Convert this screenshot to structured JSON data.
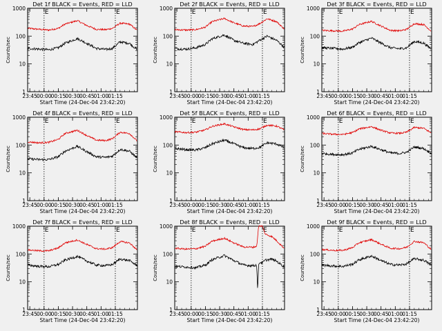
{
  "page": {
    "background": "#f0f0f0"
  },
  "colors": {
    "events": "#000000",
    "lld": "#e00000",
    "axis": "#000000"
  },
  "chart_data": [
    {
      "type": "line",
      "title": "Det 1f BLACK = Events, RED = LLD",
      "ylabel": "Counts/sec",
      "xlabel": "Start Time (24-Dec-04 23:42:20)",
      "y_scale": "log",
      "ylim": [
        1,
        1000
      ],
      "y_ticks": [
        "1",
        "10",
        "100",
        "1000"
      ],
      "x_ticks": [
        "23:45",
        "00:00",
        "00:15",
        "00:30",
        "00:45",
        "01:00",
        "01:15"
      ],
      "xlim_minutes": [
        -17.3,
        98.3
      ],
      "markers": [
        {
          "label": "E",
          "x_minutes": 0
        },
        {
          "label": "E",
          "x_minutes": 75
        }
      ],
      "series": [
        {
          "color": "red",
          "x_minutes": [
            -17,
            -5,
            5,
            15,
            22,
            35,
            45,
            55,
            65,
            72,
            80,
            90,
            98
          ],
          "values": [
            190,
            175,
            165,
            190,
            270,
            360,
            240,
            175,
            170,
            190,
            290,
            270,
            160
          ]
        },
        {
          "color": "black",
          "x_minutes": [
            -17,
            -5,
            5,
            15,
            22,
            35,
            45,
            55,
            65,
            72,
            80,
            90,
            98
          ],
          "values": [
            36,
            34,
            32,
            38,
            55,
            82,
            55,
            36,
            33,
            36,
            62,
            55,
            32
          ]
        }
      ]
    },
    {
      "type": "line",
      "title": "Det 2f BLACK = Events, RED = LLD",
      "ylabel": "Counts/sec",
      "xlabel": "Start Time (24-Dec-04 23:42:20)",
      "y_scale": "log",
      "ylim": [
        1,
        1000
      ],
      "y_ticks": [
        "1",
        "10",
        "100",
        "1000"
      ],
      "x_ticks": [
        "23:45",
        "00:00",
        "00:15",
        "00:30",
        "00:45",
        "01:00",
        "01:15"
      ],
      "xlim_minutes": [
        -17.3,
        98.3
      ],
      "markers": [
        {
          "label": "E",
          "x_minutes": 0
        },
        {
          "label": "E",
          "x_minutes": 75
        }
      ],
      "series": [
        {
          "color": "red",
          "x_minutes": [
            -17,
            -5,
            5,
            15,
            22,
            35,
            45,
            55,
            65,
            72,
            80,
            90,
            98
          ],
          "values": [
            170,
            165,
            170,
            210,
            330,
            430,
            300,
            230,
            220,
            280,
            420,
            330,
            180
          ]
        },
        {
          "color": "black",
          "x_minutes": [
            -17,
            -5,
            5,
            15,
            22,
            35,
            45,
            55,
            65,
            72,
            80,
            90,
            98
          ],
          "values": [
            35,
            34,
            38,
            50,
            80,
            110,
            70,
            55,
            50,
            70,
            100,
            70,
            40
          ]
        }
      ]
    },
    {
      "type": "line",
      "title": "Det 3f BLACK = Events, RED = LLD",
      "ylabel": "Counts/sec",
      "xlabel": "Start Time (24-Dec-04 23:42:20)",
      "y_scale": "log",
      "ylim": [
        1,
        1000
      ],
      "y_ticks": [
        "1",
        "10",
        "100",
        "1000"
      ],
      "x_ticks": [
        "23:45",
        "00:00",
        "00:15",
        "00:30",
        "00:45",
        "01:00",
        "01:15"
      ],
      "xlim_minutes": [
        -17.3,
        98.3
      ],
      "markers": [
        {
          "label": "E",
          "x_minutes": 0
        },
        {
          "label": "E",
          "x_minutes": 75
        }
      ],
      "series": [
        {
          "color": "red",
          "x_minutes": [
            -17,
            -5,
            5,
            15,
            22,
            35,
            45,
            55,
            65,
            72,
            80,
            90,
            98
          ],
          "values": [
            160,
            155,
            150,
            180,
            260,
            340,
            230,
            160,
            155,
            175,
            280,
            260,
            150
          ]
        },
        {
          "color": "black",
          "x_minutes": [
            -17,
            -5,
            5,
            15,
            22,
            35,
            45,
            55,
            65,
            72,
            80,
            90,
            98
          ],
          "values": [
            38,
            36,
            34,
            40,
            58,
            85,
            56,
            38,
            35,
            38,
            64,
            56,
            34
          ]
        }
      ]
    },
    {
      "type": "line",
      "title": "Det 4f BLACK = Events, RED = LLD",
      "ylabel": "Counts/sec",
      "xlabel": "Start Time (24-Dec-04 23:42:20)",
      "y_scale": "log",
      "ylim": [
        1,
        1000
      ],
      "y_ticks": [
        "1",
        "10",
        "100",
        "1000"
      ],
      "x_ticks": [
        "23:45",
        "00:00",
        "00:15",
        "00:30",
        "00:45",
        "01:00",
        "01:15"
      ],
      "xlim_minutes": [
        -17.3,
        98.3
      ],
      "markers": [
        {
          "label": "E",
          "x_minutes": 0
        },
        {
          "label": "E",
          "x_minutes": 75
        }
      ],
      "series": [
        {
          "color": "red",
          "x_minutes": [
            -17,
            -5,
            5,
            15,
            22,
            35,
            45,
            55,
            65,
            72,
            80,
            90,
            98
          ],
          "values": [
            130,
            120,
            125,
            160,
            260,
            340,
            220,
            150,
            145,
            170,
            290,
            260,
            140
          ]
        },
        {
          "color": "black",
          "x_minutes": [
            -17,
            -5,
            5,
            15,
            22,
            35,
            45,
            55,
            65,
            72,
            80,
            90,
            98
          ],
          "values": [
            32,
            30,
            30,
            38,
            60,
            90,
            58,
            38,
            36,
            40,
            70,
            60,
            34
          ]
        }
      ]
    },
    {
      "type": "line",
      "title": "Det 5f BLACK = Events, RED = LLD",
      "ylabel": "Counts/sec",
      "xlabel": "Start Time (24-Dec-04 23:42:20)",
      "y_scale": "log",
      "ylim": [
        1,
        1000
      ],
      "y_ticks": [
        "1",
        "10",
        "100",
        "1000"
      ],
      "x_ticks": [
        "23:45",
        "00:00",
        "00:15",
        "00:30",
        "00:45",
        "01:00",
        "01:15"
      ],
      "xlim_minutes": [
        -17.3,
        98.3
      ],
      "markers": [
        {
          "label": "E",
          "x_minutes": 0
        },
        {
          "label": "E",
          "x_minutes": 75
        }
      ],
      "series": [
        {
          "color": "red",
          "x_minutes": [
            -17,
            -5,
            5,
            15,
            22,
            35,
            45,
            55,
            65,
            72,
            80,
            90,
            98
          ],
          "values": [
            300,
            280,
            290,
            350,
            470,
            580,
            450,
            360,
            350,
            380,
            520,
            480,
            350
          ]
        },
        {
          "color": "black",
          "x_minutes": [
            -17,
            -5,
            5,
            15,
            22,
            35,
            45,
            55,
            65,
            72,
            80,
            90,
            98
          ],
          "values": [
            75,
            68,
            66,
            80,
            110,
            150,
            110,
            80,
            75,
            82,
            120,
            110,
            80
          ]
        }
      ]
    },
    {
      "type": "line",
      "title": "Det 6f BLACK = Events, RED = LLD",
      "ylabel": "Counts/sec",
      "xlabel": "Start Time (24-Dec-04 23:42:20)",
      "y_scale": "log",
      "ylim": [
        1,
        1000
      ],
      "y_ticks": [
        "1",
        "10",
        "100",
        "1000"
      ],
      "x_ticks": [
        "23:45",
        "00:00",
        "00:15",
        "00:30",
        "00:45",
        "01:00",
        "01:15"
      ],
      "xlim_minutes": [
        -17.3,
        98.3
      ],
      "markers": [
        {
          "label": "E",
          "x_minutes": 0
        },
        {
          "label": "E",
          "x_minutes": 75
        }
      ],
      "series": [
        {
          "color": "red",
          "x_minutes": [
            -17,
            -5,
            5,
            15,
            22,
            35,
            45,
            55,
            65,
            72,
            80,
            90,
            98
          ],
          "values": [
            260,
            245,
            240,
            280,
            380,
            460,
            340,
            270,
            265,
            290,
            430,
            400,
            270
          ]
        },
        {
          "color": "black",
          "x_minutes": [
            -17,
            -5,
            5,
            15,
            22,
            35,
            45,
            55,
            65,
            72,
            80,
            90,
            98
          ],
          "values": [
            50,
            46,
            45,
            52,
            70,
            90,
            68,
            52,
            50,
            55,
            85,
            75,
            50
          ]
        }
      ]
    },
    {
      "type": "line",
      "title": "Det 7f BLACK = Events, RED = LLD",
      "ylabel": "Counts/sec",
      "xlabel": "Start Time (24-Dec-04 23:42:20)",
      "y_scale": "log",
      "ylim": [
        1,
        1000
      ],
      "y_ticks": [
        "1",
        "10",
        "100",
        "1000"
      ],
      "x_ticks": [
        "23:45",
        "00:00",
        "00:15",
        "00:30",
        "00:45",
        "01:00",
        "01:15"
      ],
      "xlim_minutes": [
        -17.3,
        98.3
      ],
      "markers": [
        {
          "label": "E",
          "x_minutes": 0
        },
        {
          "label": "E",
          "x_minutes": 75
        }
      ],
      "series": [
        {
          "color": "red",
          "x_minutes": [
            -17,
            -5,
            5,
            15,
            22,
            35,
            45,
            55,
            65,
            72,
            80,
            90,
            98
          ],
          "values": [
            140,
            130,
            130,
            165,
            250,
            320,
            220,
            155,
            150,
            170,
            280,
            250,
            140
          ]
        },
        {
          "color": "black",
          "x_minutes": [
            -17,
            -5,
            5,
            15,
            22,
            35,
            45,
            55,
            65,
            72,
            80,
            90,
            98
          ],
          "values": [
            40,
            36,
            35,
            42,
            60,
            82,
            56,
            40,
            38,
            42,
            66,
            58,
            38
          ]
        }
      ]
    },
    {
      "type": "line",
      "title": "Det 8f BLACK = Events, RED = LLD",
      "ylabel": "Counts/sec",
      "xlabel": "Start Time (24-Dec-04 23:42:20)",
      "y_scale": "log",
      "ylim": [
        1,
        1000
      ],
      "y_ticks": [
        "1",
        "10",
        "100",
        "1000"
      ],
      "x_ticks": [
        "23:45",
        "00:00",
        "00:15",
        "00:30",
        "00:45",
        "01:00",
        "01:15"
      ],
      "xlim_minutes": [
        -17.3,
        98.3
      ],
      "markers": [
        {
          "label": "E",
          "x_minutes": 0
        },
        {
          "label": "E",
          "x_minutes": 75
        }
      ],
      "series": [
        {
          "color": "red",
          "x_minutes": [
            -17,
            -5,
            5,
            15,
            22,
            35,
            45,
            55,
            65,
            69,
            71,
            73,
            75,
            78,
            85,
            90,
            98
          ],
          "values": [
            160,
            150,
            155,
            190,
            290,
            370,
            250,
            180,
            175,
            190,
            1000,
            1000,
            1000,
            520,
            420,
            300,
            160
          ]
        },
        {
          "color": "black",
          "x_minutes": [
            -17,
            -5,
            5,
            15,
            22,
            35,
            45,
            55,
            65,
            69,
            70,
            71,
            73,
            75,
            78,
            85,
            90,
            98
          ],
          "values": [
            36,
            34,
            32,
            40,
            62,
            88,
            58,
            40,
            38,
            40,
            4,
            45,
            50,
            48,
            60,
            65,
            55,
            34
          ]
        }
      ]
    },
    {
      "type": "line",
      "title": "Det 9f BLACK = Events, RED = LLD",
      "ylabel": "Counts/sec",
      "xlabel": "Start Time (24-Dec-04 23:42:20)",
      "y_scale": "log",
      "ylim": [
        1,
        1000
      ],
      "y_ticks": [
        "1",
        "10",
        "100",
        "1000"
      ],
      "x_ticks": [
        "23:45",
        "00:00",
        "00:15",
        "00:30",
        "00:45",
        "01:00",
        "01:15"
      ],
      "xlim_minutes": [
        -17.3,
        98.3
      ],
      "markers": [
        {
          "label": "E",
          "x_minutes": 0
        },
        {
          "label": "E",
          "x_minutes": 75
        }
      ],
      "series": [
        {
          "color": "red",
          "x_minutes": [
            -17,
            -5,
            5,
            15,
            22,
            35,
            45,
            55,
            65,
            72,
            80,
            90,
            98
          ],
          "values": [
            145,
            135,
            135,
            170,
            255,
            330,
            225,
            160,
            155,
            175,
            285,
            255,
            145
          ]
        },
        {
          "color": "black",
          "x_minutes": [
            -17,
            -5,
            5,
            15,
            22,
            35,
            45,
            55,
            65,
            72,
            80,
            90,
            98
          ],
          "values": [
            40,
            37,
            36,
            43,
            62,
            85,
            58,
            42,
            40,
            44,
            68,
            60,
            40
          ]
        }
      ]
    }
  ]
}
